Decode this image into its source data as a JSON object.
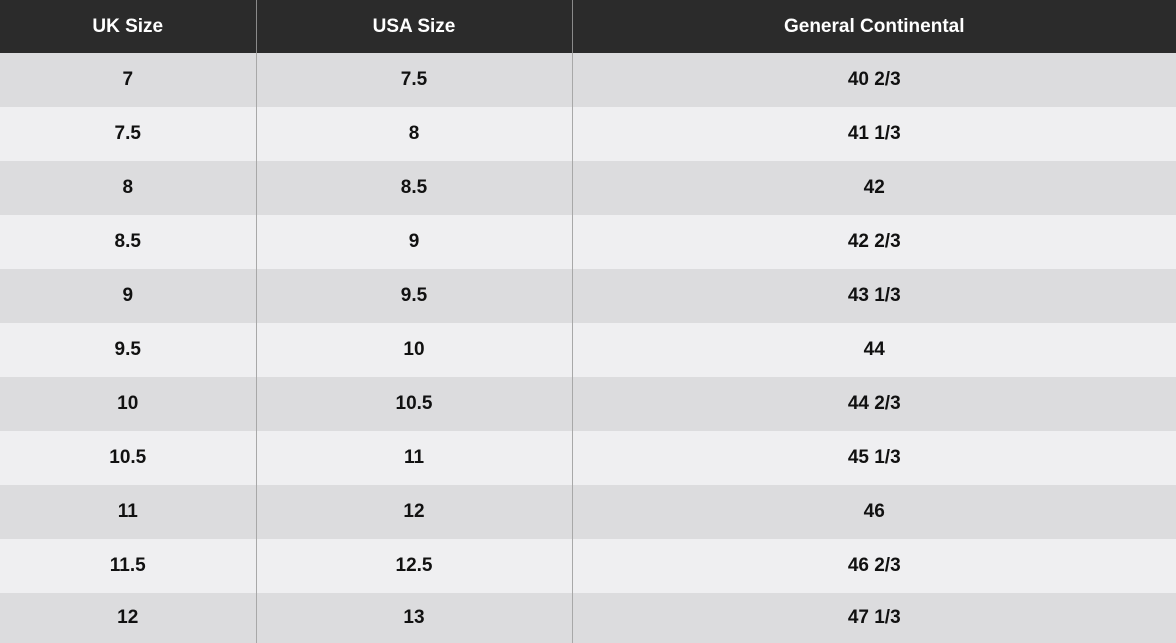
{
  "table": {
    "headers": [
      "UK Size",
      "USA Size",
      "General Continental"
    ],
    "rows": [
      [
        "7",
        "7.5",
        "40 2/3"
      ],
      [
        "7.5",
        "8",
        "41 1/3"
      ],
      [
        "8",
        "8.5",
        "42"
      ],
      [
        "8.5",
        "9",
        "42 2/3"
      ],
      [
        "9",
        "9.5",
        "43 1/3"
      ],
      [
        "9.5",
        "10",
        "44"
      ],
      [
        "10",
        "10.5",
        "44 2/3"
      ],
      [
        "10.5",
        "11",
        "45 1/3"
      ],
      [
        "11",
        "12",
        "46"
      ],
      [
        "11.5",
        "12.5",
        "46 2/3"
      ],
      [
        "12",
        "13",
        "47 1/3"
      ]
    ]
  },
  "colors": {
    "header_bg": "#2b2b2b",
    "header_text": "#ffffff",
    "row_dark": "#dcdcde",
    "row_light": "#efeff1",
    "text": "#111111"
  }
}
